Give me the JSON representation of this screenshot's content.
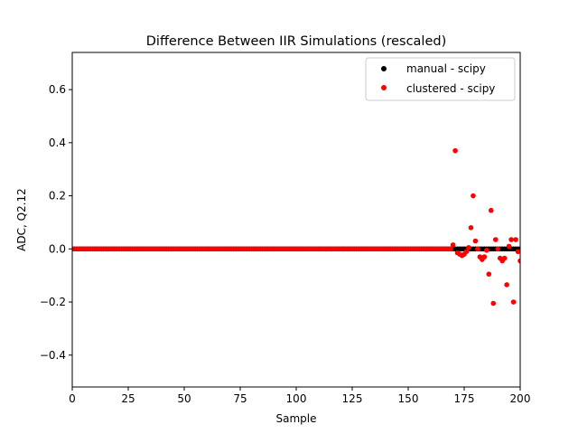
{
  "chart_data": {
    "type": "scatter",
    "title": "Difference Between IIR Simulations (rescaled)",
    "xlabel": "Sample",
    "ylabel": "ADC, Q2.12",
    "xlim": [
      0,
      200
    ],
    "ylim": [
      -0.52,
      0.74
    ],
    "xticks": [
      0,
      25,
      50,
      75,
      100,
      125,
      150,
      175,
      200
    ],
    "yticks": [
      -0.4,
      -0.2,
      0.0,
      0.2,
      0.4,
      0.6
    ],
    "ytick_labels": [
      "−0.4",
      "−0.2",
      "0.0",
      "0.2",
      "0.4",
      "0.6"
    ],
    "grid": false,
    "legend_position": "top-right",
    "series": [
      {
        "name": "manual - scipy",
        "color": "#000000",
        "x_start": 0,
        "x_end": 200,
        "constant_y": 0.0
      },
      {
        "name": "clustered - scipy",
        "color": "#ff0000",
        "x_start": 0,
        "x_end": 169,
        "constant_y": 0.0,
        "points": [
          [
            170,
            0.015
          ],
          [
            171,
            0.37
          ],
          [
            172,
            -0.015
          ],
          [
            173,
            -0.02
          ],
          [
            174,
            -0.025
          ],
          [
            175,
            -0.02
          ],
          [
            176,
            -0.01
          ],
          [
            177,
            0.005
          ],
          [
            178,
            0.08
          ],
          [
            179,
            0.2
          ],
          [
            180,
            0.03
          ],
          [
            181,
            0.0
          ],
          [
            182,
            -0.03
          ],
          [
            183,
            -0.04
          ],
          [
            184,
            -0.03
          ],
          [
            185,
            -0.005
          ],
          [
            186,
            -0.095
          ],
          [
            187,
            0.145
          ],
          [
            188,
            -0.205
          ],
          [
            189,
            0.035
          ],
          [
            190,
            0.0
          ],
          [
            191,
            -0.035
          ],
          [
            192,
            -0.045
          ],
          [
            193,
            -0.035
          ],
          [
            194,
            -0.135
          ],
          [
            195,
            0.01
          ],
          [
            196,
            0.035
          ],
          [
            197,
            -0.2
          ],
          [
            198,
            0.035
          ],
          [
            199,
            -0.01
          ],
          [
            200,
            -0.045
          ]
        ]
      }
    ]
  }
}
